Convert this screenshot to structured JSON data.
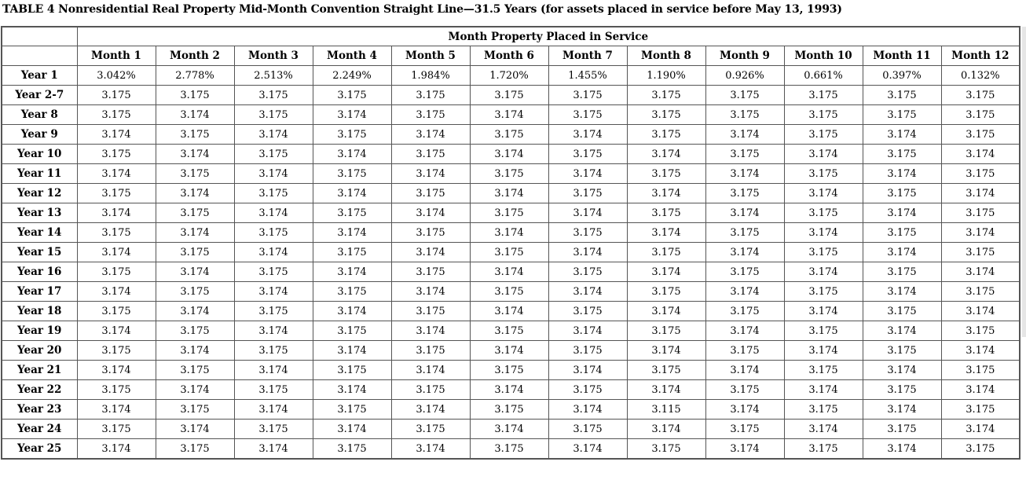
{
  "title": "TABLE 4 Nonresidential Real Property Mid-Month Convention Straight Line—31.5 Years (for assets placed in service before May 13, 1993)",
  "group_header": "Month Property Placed in Service",
  "columns": [
    "Month 1",
    "Month 2",
    "Month 3",
    "Month 4",
    "Month 5",
    "Month 6",
    "Month 7",
    "Month 8",
    "Month 9",
    "Month 10",
    "Month 11",
    "Month 12"
  ],
  "rows": [
    {
      "label": "Year 1",
      "values": [
        "3.042%",
        "2.778%",
        "2.513%",
        "2.249%",
        "1.984%",
        "1.720%",
        "1.455%",
        "1.190%",
        "0.926%",
        "0.661%",
        "0.397%",
        "0.132%"
      ]
    },
    {
      "label": "Year 2-7",
      "values": [
        "3.175",
        "3.175",
        "3.175",
        "3.175",
        "3.175",
        "3.175",
        "3.175",
        "3.175",
        "3.175",
        "3.175",
        "3.175",
        "3.175"
      ]
    },
    {
      "label": "Year 8",
      "values": [
        "3.175",
        "3.174",
        "3.175",
        "3.174",
        "3.175",
        "3.174",
        "3.175",
        "3.175",
        "3.175",
        "3.175",
        "3.175",
        "3.175"
      ]
    },
    {
      "label": "Year 9",
      "values": [
        "3.174",
        "3.175",
        "3.174",
        "3.175",
        "3.174",
        "3.175",
        "3.174",
        "3.175",
        "3.174",
        "3.175",
        "3.174",
        "3.175"
      ]
    },
    {
      "label": "Year 10",
      "values": [
        "3.175",
        "3.174",
        "3.175",
        "3.174",
        "3.175",
        "3.174",
        "3.175",
        "3.174",
        "3.175",
        "3.174",
        "3.175",
        "3.174"
      ]
    },
    {
      "label": "Year 11",
      "values": [
        "3.174",
        "3.175",
        "3.174",
        "3.175",
        "3.174",
        "3.175",
        "3.174",
        "3.175",
        "3.174",
        "3.175",
        "3.174",
        "3.175"
      ]
    },
    {
      "label": "Year 12",
      "values": [
        "3.175",
        "3.174",
        "3.175",
        "3.174",
        "3.175",
        "3.174",
        "3.175",
        "3.174",
        "3.175",
        "3.174",
        "3.175",
        "3.174"
      ]
    },
    {
      "label": "Year 13",
      "values": [
        "3.174",
        "3.175",
        "3.174",
        "3.175",
        "3.174",
        "3.175",
        "3.174",
        "3.175",
        "3.174",
        "3.175",
        "3.174",
        "3.175"
      ]
    },
    {
      "label": "Year 14",
      "values": [
        "3.175",
        "3.174",
        "3.175",
        "3.174",
        "3.175",
        "3.174",
        "3.175",
        "3.174",
        "3.175",
        "3.174",
        "3.175",
        "3.174"
      ]
    },
    {
      "label": "Year 15",
      "values": [
        "3.174",
        "3.175",
        "3.174",
        "3.175",
        "3.174",
        "3.175",
        "3.174",
        "3.175",
        "3.174",
        "3.175",
        "3.174",
        "3.175"
      ]
    },
    {
      "label": "Year 16",
      "values": [
        "3.175",
        "3.174",
        "3.175",
        "3.174",
        "3.175",
        "3.174",
        "3.175",
        "3.174",
        "3.175",
        "3.174",
        "3.175",
        "3.174"
      ]
    },
    {
      "label": "Year 17",
      "values": [
        "3.174",
        "3.175",
        "3.174",
        "3.175",
        "3.174",
        "3.175",
        "3.174",
        "3.175",
        "3.174",
        "3.175",
        "3.174",
        "3.175"
      ]
    },
    {
      "label": "Year 18",
      "values": [
        "3.175",
        "3.174",
        "3.175",
        "3.174",
        "3.175",
        "3.174",
        "3.175",
        "3.174",
        "3.175",
        "3.174",
        "3.175",
        "3.174"
      ]
    },
    {
      "label": "Year 19",
      "values": [
        "3.174",
        "3.175",
        "3.174",
        "3.175",
        "3.174",
        "3.175",
        "3.174",
        "3.175",
        "3.174",
        "3.175",
        "3.174",
        "3.175"
      ]
    },
    {
      "label": "Year 20",
      "values": [
        "3.175",
        "3.174",
        "3.175",
        "3.174",
        "3.175",
        "3.174",
        "3.175",
        "3.174",
        "3.175",
        "3.174",
        "3.175",
        "3.174"
      ]
    },
    {
      "label": "Year 21",
      "values": [
        "3.174",
        "3.175",
        "3.174",
        "3.175",
        "3.174",
        "3.175",
        "3.174",
        "3.175",
        "3.174",
        "3.175",
        "3.174",
        "3.175"
      ]
    },
    {
      "label": "Year 22",
      "values": [
        "3.175",
        "3.174",
        "3.175",
        "3.174",
        "3.175",
        "3.174",
        "3.175",
        "3.174",
        "3.175",
        "3.174",
        "3.175",
        "3.174"
      ]
    },
    {
      "label": "Year 23",
      "values": [
        "3.174",
        "3.175",
        "3.174",
        "3.175",
        "3.174",
        "3.175",
        "3.174",
        "3.115",
        "3.174",
        "3.175",
        "3.174",
        "3.175"
      ]
    },
    {
      "label": "Year 24",
      "values": [
        "3.175",
        "3.174",
        "3.175",
        "3.174",
        "3.175",
        "3.174",
        "3.175",
        "3.174",
        "3.175",
        "3.174",
        "3.175",
        "3.174"
      ]
    },
    {
      "label": "Year 25",
      "values": [
        "3.174",
        "3.175",
        "3.174",
        "3.175",
        "3.174",
        "3.175",
        "3.174",
        "3.175",
        "3.174",
        "3.175",
        "3.174",
        "3.175"
      ]
    }
  ]
}
